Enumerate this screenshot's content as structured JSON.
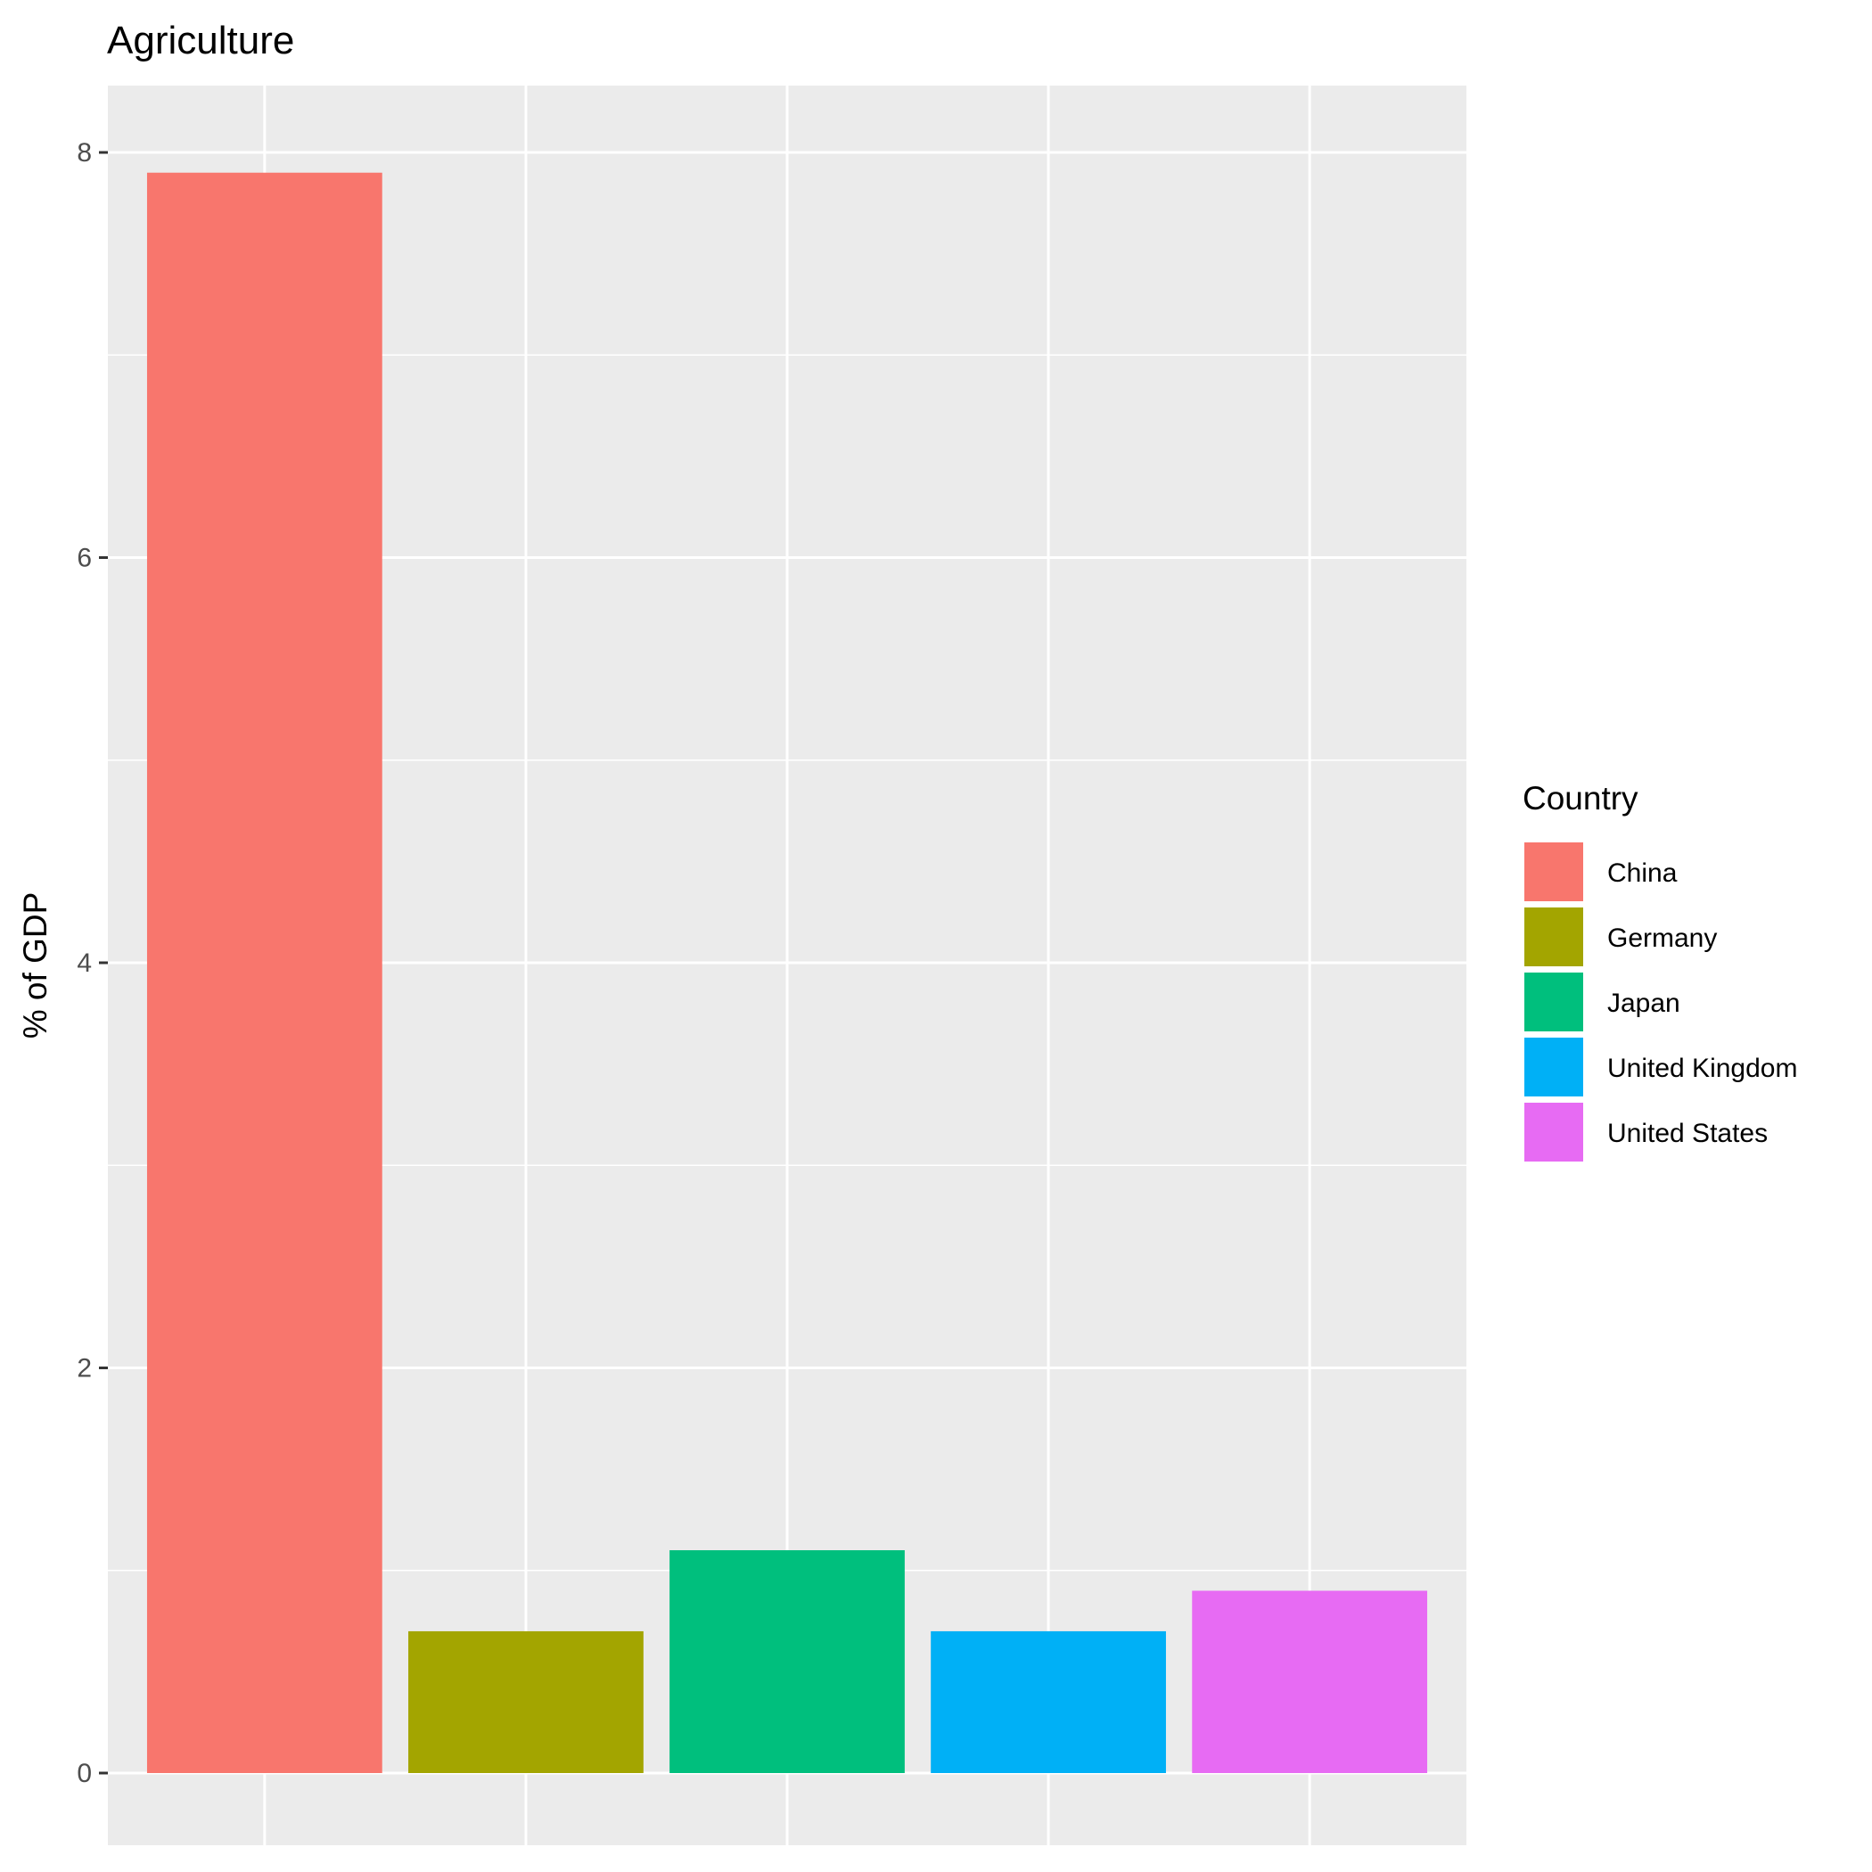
{
  "chart_data": {
    "type": "bar",
    "title": "Agriculture",
    "xlabel": "",
    "ylabel": "% of GDP",
    "categories": [
      "China",
      "Germany",
      "Japan",
      "United Kingdom",
      "United States"
    ],
    "values": [
      7.9,
      0.7,
      1.1,
      0.7,
      0.9
    ],
    "colors": [
      "#F8766D",
      "#A3A500",
      "#00BF7D",
      "#00B0F6",
      "#E76BF3"
    ],
    "ylim": [
      -0.3,
      8.3
    ],
    "yticks": [
      0,
      2,
      4,
      6,
      8
    ],
    "grid": true,
    "x_tick_labels_shown": false,
    "legend": {
      "title": "Country",
      "placement": "right",
      "items": [
        "China",
        "Germany",
        "Japan",
        "United Kingdom",
        "United States"
      ]
    }
  }
}
